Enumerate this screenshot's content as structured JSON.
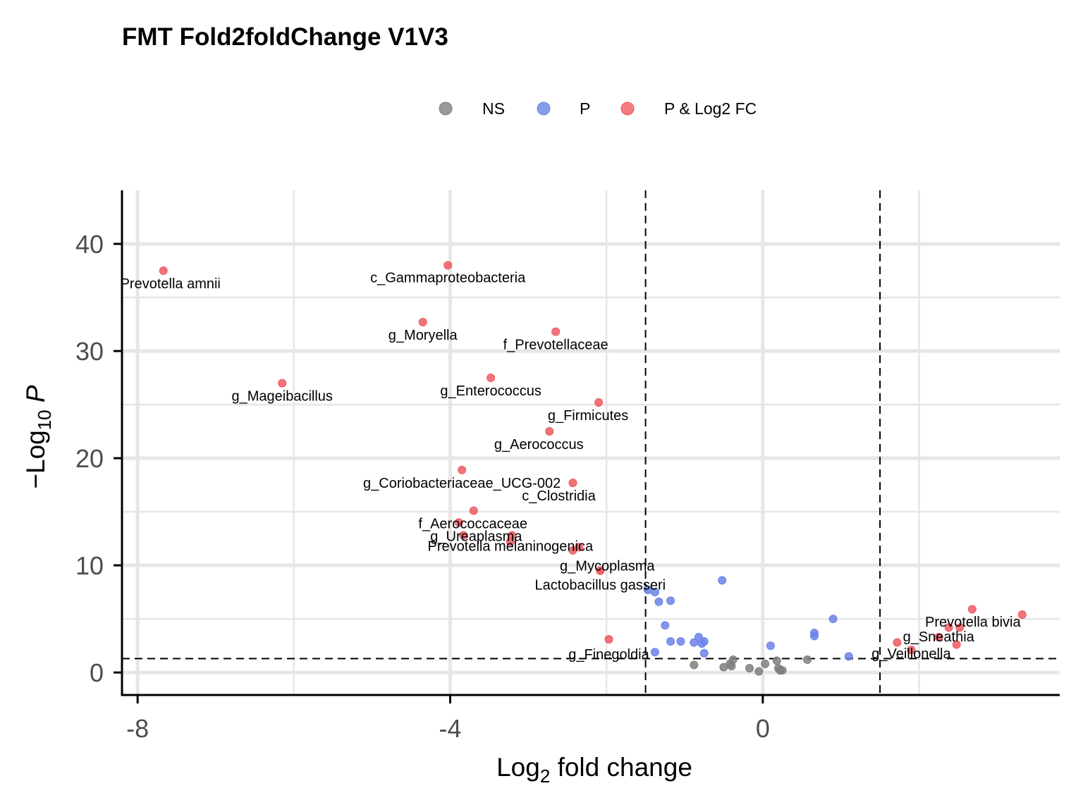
{
  "chart_data": {
    "type": "scatter",
    "title": "FMT Fold2foldChange V1V3",
    "xlabel": {
      "prefix": "Log",
      "sub": "2",
      "suffix": " fold change"
    },
    "ylabel": {
      "prefix": "−Log",
      "sub": "10",
      "suffix": " P"
    },
    "xlim": [
      -8.2,
      3.8
    ],
    "ylim": [
      -2.1,
      45
    ],
    "x_ticks": [
      -8,
      -4,
      0
    ],
    "x_tick_labels": [
      "-8",
      "-4",
      "0"
    ],
    "y_ticks": [
      0,
      10,
      20,
      30,
      40
    ],
    "y_tick_labels": [
      "0",
      "10",
      "20",
      "30",
      "40"
    ],
    "x_minor_grid": [
      -6,
      -2,
      2
    ],
    "y_minor_grid": [
      5,
      15,
      25,
      35
    ],
    "grid": true,
    "legend_position": "top",
    "thresholds": {
      "log2fc": [
        -1.5,
        1.5
      ],
      "neg_log10_p": 1.3
    },
    "colors": {
      "NS": "#7f7f7f",
      "P": "#6b83e6",
      "P & Log2 FC": "#ef5a62",
      "grid": "#e6e6e6",
      "axis": "#000000"
    },
    "legend": [
      "NS",
      "P",
      "P & Log2 FC"
    ],
    "series": [
      {
        "name": "NS",
        "points": [
          {
            "x": -0.88,
            "y": 0.7
          },
          {
            "x": -0.5,
            "y": 0.5
          },
          {
            "x": -0.42,
            "y": 0.8
          },
          {
            "x": -0.38,
            "y": 1.2
          },
          {
            "x": -0.4,
            "y": 0.6
          },
          {
            "x": -0.17,
            "y": 0.4
          },
          {
            "x": -0.05,
            "y": 0.1
          },
          {
            "x": 0.03,
            "y": 0.8
          },
          {
            "x": 0.18,
            "y": 1.1
          },
          {
            "x": 0.2,
            "y": 0.4
          },
          {
            "x": 0.22,
            "y": 0.2
          },
          {
            "x": 0.25,
            "y": 0.2
          },
          {
            "x": 0.57,
            "y": 1.2
          }
        ]
      },
      {
        "name": "P",
        "points": [
          {
            "x": -0.52,
            "y": 8.6
          },
          {
            "x": -1.47,
            "y": 7.7
          },
          {
            "x": -1.38,
            "y": 7.5
          },
          {
            "x": -1.33,
            "y": 6.6
          },
          {
            "x": -1.18,
            "y": 6.7
          },
          {
            "x": -1.25,
            "y": 4.4
          },
          {
            "x": -1.18,
            "y": 2.9
          },
          {
            "x": -1.05,
            "y": 2.9
          },
          {
            "x": -0.88,
            "y": 2.8
          },
          {
            "x": -0.82,
            "y": 3.3
          },
          {
            "x": -0.78,
            "y": 2.7
          },
          {
            "x": -0.75,
            "y": 2.9
          },
          {
            "x": -0.75,
            "y": 1.8
          },
          {
            "x": -1.38,
            "y": 1.9
          },
          {
            "x": 0.1,
            "y": 2.5
          },
          {
            "x": 0.66,
            "y": 3.7
          },
          {
            "x": 0.66,
            "y": 3.4
          },
          {
            "x": 0.9,
            "y": 5.0
          },
          {
            "x": 1.1,
            "y": 1.5
          }
        ]
      },
      {
        "name": "P & Log2 FC",
        "points": [
          {
            "x": -7.67,
            "y": 37.5,
            "label": "Prevotella amnii"
          },
          {
            "x": -4.03,
            "y": 38.0,
            "label": "c_Gammaproteobacteria"
          },
          {
            "x": -4.35,
            "y": 32.7,
            "label": "g_Moryella"
          },
          {
            "x": -2.65,
            "y": 31.8,
            "label": "f_Prevotellaceae"
          },
          {
            "x": -6.15,
            "y": 27.0,
            "label": "g_Mageibacillus"
          },
          {
            "x": -3.48,
            "y": 27.5,
            "label": "g_Enterococcus"
          },
          {
            "x": -2.1,
            "y": 25.2,
            "label": "g_Firmicutes"
          },
          {
            "x": -2.73,
            "y": 22.5,
            "label": "g_Aerococcus"
          },
          {
            "x": -3.85,
            "y": 18.9,
            "label": "g_Coriobacteriaceae_UCG-002"
          },
          {
            "x": -2.43,
            "y": 17.7,
            "label": "c_Clostridia"
          },
          {
            "x": -3.7,
            "y": 15.1
          },
          {
            "x": -3.89,
            "y": 14.0,
            "label": "f_Aerococcaceae"
          },
          {
            "x": -3.83,
            "y": 12.8,
            "label": "g_Ureaplasma"
          },
          {
            "x": -3.21,
            "y": 12.8
          },
          {
            "x": -3.23,
            "y": 12.2,
            "label": "Prevotella melaninogenica"
          },
          {
            "x": -2.35,
            "y": 11.7
          },
          {
            "x": -2.43,
            "y": 11.4
          },
          {
            "x": -2.08,
            "y": 9.5,
            "label": "g_Mycoplasma"
          },
          {
            "x": -2.08,
            "y": 9.5,
            "label": "Lactobacillus gasseri"
          },
          {
            "x": -1.97,
            "y": 3.1,
            "label": "g_Finegoldia"
          },
          {
            "x": 2.68,
            "y": 5.9
          },
          {
            "x": 3.32,
            "y": 5.4,
            "label": "Prevotella bivia"
          },
          {
            "x": 2.38,
            "y": 4.2
          },
          {
            "x": 2.52,
            "y": 4.2
          },
          {
            "x": 2.25,
            "y": 3.3,
            "label": "g_Sneathia"
          },
          {
            "x": 1.72,
            "y": 2.8
          },
          {
            "x": 2.48,
            "y": 2.6
          },
          {
            "x": 1.9,
            "y": 2.1,
            "label": "g_Veillonella"
          }
        ]
      }
    ]
  }
}
